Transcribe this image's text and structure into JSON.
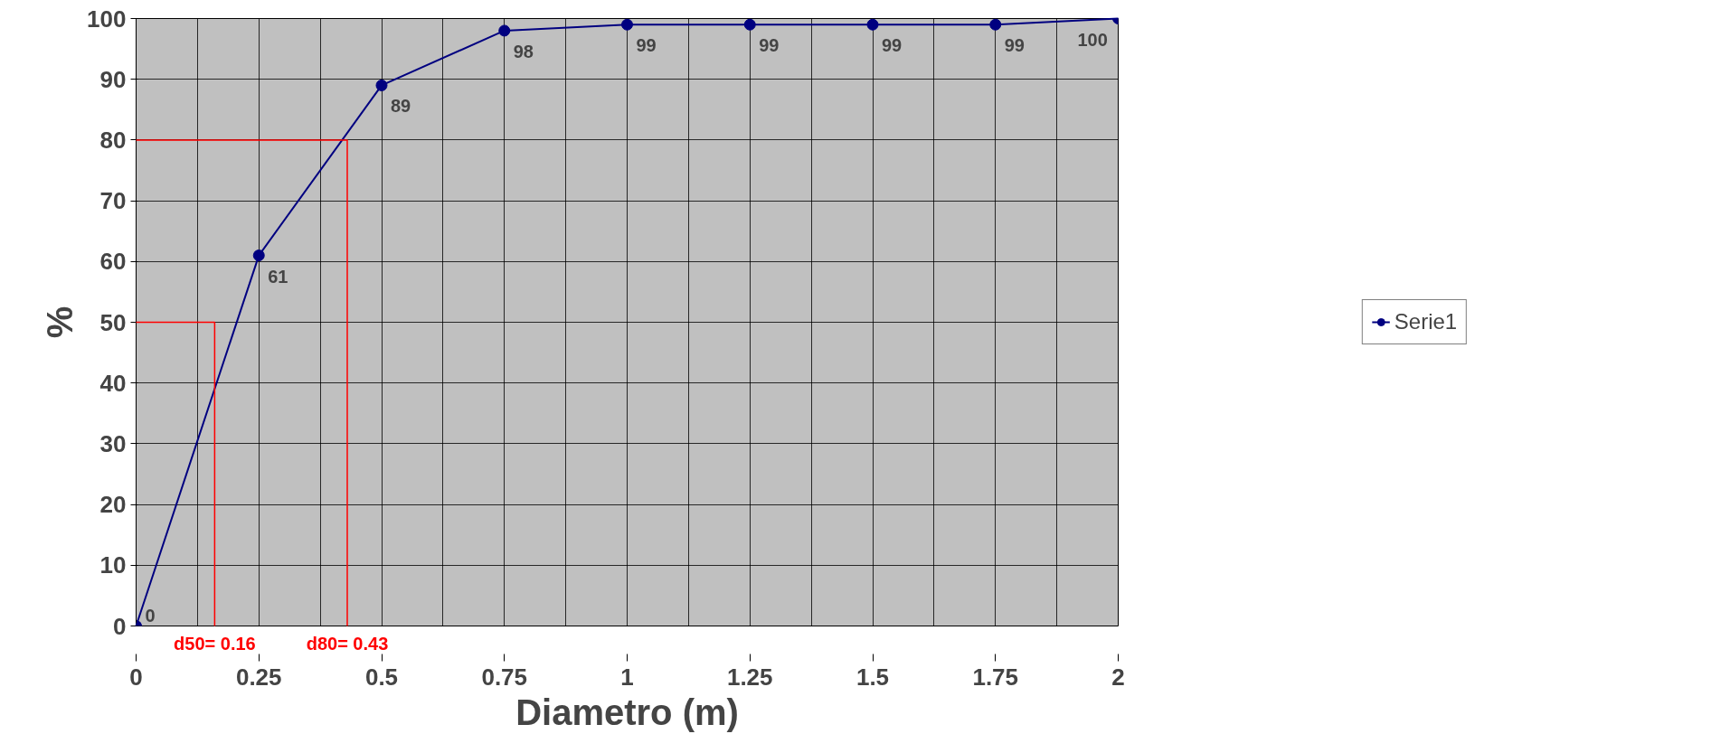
{
  "chart_data": {
    "type": "line",
    "xlabel": "Diametro (m)",
    "ylabel": "%",
    "x": [
      0,
      0.25,
      0.5,
      0.75,
      1,
      1.25,
      1.5,
      1.75,
      2
    ],
    "series": [
      {
        "name": "Serie1",
        "color": "#000080",
        "values": [
          0,
          61,
          89,
          98,
          99,
          99,
          99,
          99,
          100
        ]
      },
      {
        "color": "#ff0000",
        "x": [
          0,
          0.16,
          0.16
        ],
        "values": [
          50,
          50,
          0
        ],
        "marker": "none",
        "data_labels": false
      },
      {
        "color": "#ff0000",
        "x": [
          0,
          0.43,
          0.43
        ],
        "values": [
          80,
          80,
          0
        ],
        "marker": "none",
        "data_labels": false
      }
    ],
    "xlim": [
      0,
      2
    ],
    "ylim": [
      0,
      100
    ],
    "xticks": [
      0,
      0.25,
      0.5,
      0.75,
      1,
      1.25,
      1.5,
      1.75,
      2
    ],
    "yticks": [
      0,
      10,
      20,
      30,
      40,
      50,
      60,
      70,
      80,
      90,
      100
    ],
    "grid": true,
    "legend": "right",
    "marker": "circle",
    "line_style": "solid",
    "data_labels": true,
    "annotations": [
      "d50= 0.16",
      "d80= 0.43"
    ]
  }
}
